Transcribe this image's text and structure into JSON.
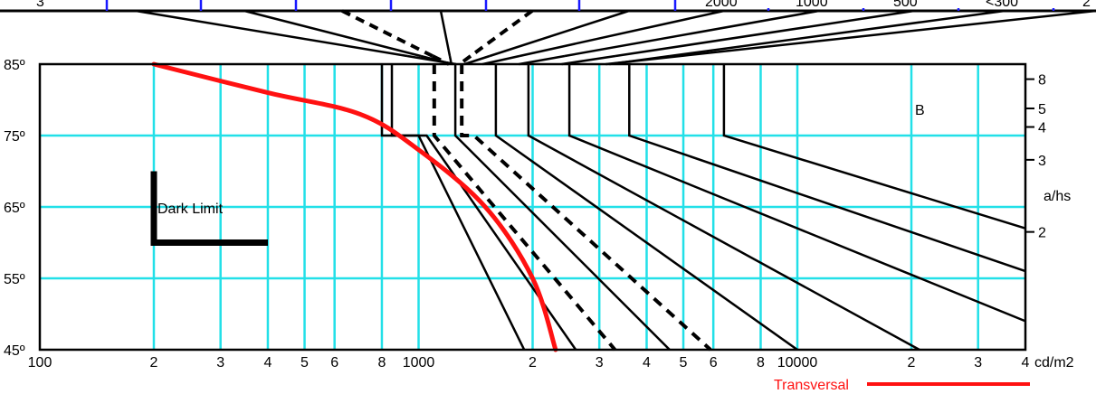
{
  "top_scale": {
    "labels": [
      "3",
      "2000",
      "1000",
      "500",
      "<300",
      "2"
    ]
  },
  "x_axis": {
    "values": [
      100,
      200,
      300,
      400,
      500,
      600,
      800,
      1000,
      2000,
      3000,
      4000,
      5000,
      6000,
      8000,
      10000,
      20000,
      30000,
      40000
    ],
    "labels": [
      "100",
      "2",
      "3",
      "4",
      "5",
      "6",
      "8",
      "1000",
      "2",
      "3",
      "4",
      "5",
      "6",
      "8",
      "10000",
      "2",
      "3",
      "4"
    ],
    "unit": "cd/m2",
    "range": [
      100,
      40000
    ],
    "scale": "log"
  },
  "y_axis": {
    "values": [
      45,
      55,
      65,
      75,
      85
    ],
    "labels": [
      "45º",
      "55º",
      "65º",
      "75º",
      "85º"
    ],
    "range": [
      45,
      85
    ]
  },
  "right_axis": {
    "label": "a/hs",
    "ticks": [
      {
        "label": "8",
        "angle": 82.9
      },
      {
        "label": "5",
        "angle": 78.8
      },
      {
        "label": "4",
        "angle": 76.2
      },
      {
        "label": "3",
        "angle": 71.6
      },
      {
        "label": "2",
        "angle": 61.5
      }
    ]
  },
  "annotations": {
    "dark_limit": "Dark Limit",
    "region_b": "B"
  },
  "legend": {
    "transversal": "Transversal"
  },
  "colors": {
    "grid": "#22e0e8",
    "curve": "#ff1111",
    "lines": "#000000",
    "dark_limit": "#000000"
  },
  "chart_data": {
    "type": "line",
    "series": [
      {
        "name": "Transversal",
        "x": [
          200,
          400,
          700,
          1000,
          1500,
          2000,
          2300
        ],
        "y": [
          85,
          81,
          78,
          73,
          65,
          55,
          45
        ]
      }
    ],
    "contour_lines": [
      {
        "style": "solid",
        "x": [
          800,
          800,
          1000,
          1900
        ],
        "y": [
          85,
          75,
          75,
          45
        ]
      },
      {
        "style": "solid",
        "x": [
          850,
          850,
          1050,
          2600
        ],
        "y": [
          85,
          75,
          75,
          45
        ]
      },
      {
        "style": "dashed",
        "x": [
          1100,
          1100,
          1100,
          3300
        ],
        "y": [
          85,
          75,
          75,
          45
        ]
      },
      {
        "style": "dashed",
        "x": [
          1300,
          1300,
          1400,
          5900
        ],
        "y": [
          85,
          75,
          75,
          45
        ]
      },
      {
        "style": "solid",
        "x": [
          1250,
          1250,
          1250,
          4600
        ],
        "y": [
          85,
          75,
          75,
          45
        ]
      },
      {
        "style": "solid",
        "x": [
          1600,
          1600,
          1600,
          10000
        ],
        "y": [
          85,
          75,
          75,
          45
        ]
      },
      {
        "style": "solid",
        "x": [
          1950,
          1950,
          1950,
          21000
        ],
        "y": [
          85,
          75,
          75,
          45
        ]
      },
      {
        "style": "solid",
        "x": [
          2500,
          2500,
          2500,
          40000
        ],
        "y": [
          85,
          75,
          75,
          49
        ]
      },
      {
        "style": "solid",
        "x": [
          3600,
          3600,
          3600,
          40000
        ],
        "y": [
          85,
          75,
          75,
          56
        ]
      },
      {
        "style": "solid",
        "x": [
          6400,
          6400,
          6400,
          40000
        ],
        "y": [
          85,
          75,
          75,
          62
        ]
      }
    ],
    "dark_limit": {
      "x": [
        200,
        200,
        400
      ],
      "y": [
        70,
        60,
        60
      ]
    },
    "xlim": [
      100,
      40000
    ],
    "ylim": [
      45,
      85
    ],
    "xscale": "log",
    "grid": true
  }
}
